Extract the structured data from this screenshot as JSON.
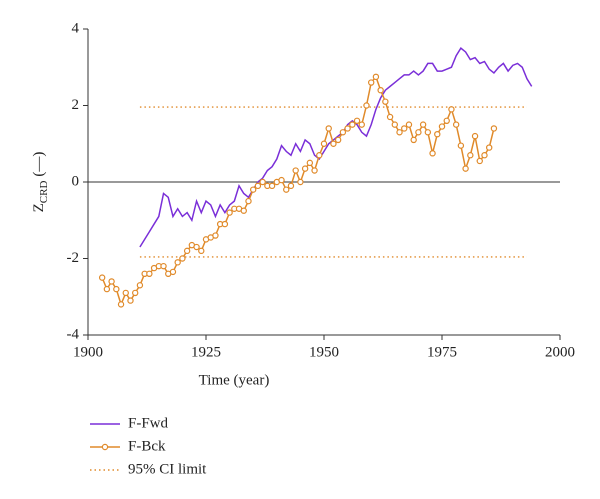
{
  "chart_data": {
    "type": "line",
    "xlabel": "Time (year)",
    "ylabel": "Z",
    "ylabel_sub": "CRD",
    "ylabel_unit": "(—)",
    "xlim": [
      1900,
      2000
    ],
    "xticks": [
      1900,
      1925,
      1950,
      1975,
      2000
    ],
    "ylim": [
      -4,
      4
    ],
    "yticks": [
      -4,
      -2,
      0,
      2,
      4
    ],
    "legend": "bottom-left",
    "series": [
      {
        "name": "F-Fwd",
        "color": "#7a2fd8",
        "markers": false,
        "x": [
          1911,
          1912,
          1913,
          1914,
          1915,
          1916,
          1917,
          1918,
          1919,
          1920,
          1921,
          1922,
          1923,
          1924,
          1925,
          1926,
          1927,
          1928,
          1929,
          1930,
          1931,
          1932,
          1933,
          1934,
          1935,
          1936,
          1937,
          1938,
          1939,
          1940,
          1941,
          1942,
          1943,
          1944,
          1945,
          1946,
          1947,
          1948,
          1949,
          1950,
          1951,
          1952,
          1953,
          1954,
          1955,
          1956,
          1957,
          1958,
          1959,
          1960,
          1961,
          1962,
          1963,
          1964,
          1965,
          1966,
          1967,
          1968,
          1969,
          1970,
          1971,
          1972,
          1973,
          1974,
          1975,
          1976,
          1977,
          1978,
          1979,
          1980,
          1981,
          1982,
          1983,
          1984,
          1985,
          1986,
          1987,
          1988,
          1989,
          1990,
          1991,
          1992,
          1993,
          1994
        ],
        "values": [
          -1.7,
          -1.5,
          -1.3,
          -1.1,
          -0.9,
          -0.3,
          -0.4,
          -0.9,
          -0.7,
          -0.9,
          -0.8,
          -1.0,
          -0.5,
          -0.8,
          -0.5,
          -0.6,
          -0.9,
          -0.6,
          -0.8,
          -0.6,
          -0.5,
          -0.1,
          -0.3,
          -0.4,
          -0.2,
          0.0,
          0.1,
          0.3,
          0.4,
          0.6,
          0.95,
          0.8,
          0.7,
          1.0,
          0.8,
          1.1,
          1.0,
          0.7,
          0.6,
          0.8,
          1.0,
          1.1,
          1.2,
          1.3,
          1.5,
          1.6,
          1.5,
          1.3,
          1.2,
          1.5,
          1.9,
          2.2,
          2.4,
          2.5,
          2.6,
          2.7,
          2.8,
          2.8,
          2.9,
          2.8,
          2.9,
          3.1,
          3.1,
          2.9,
          2.9,
          2.95,
          3.0,
          3.3,
          3.5,
          3.4,
          3.2,
          3.25,
          3.1,
          3.15,
          2.95,
          2.85,
          3.0,
          3.1,
          2.9,
          3.05,
          3.1,
          3.0,
          2.7,
          2.5
        ]
      },
      {
        "name": "F-Bck",
        "color": "#e08a2a",
        "markers": true,
        "x": [
          1903,
          1904,
          1905,
          1906,
          1907,
          1908,
          1909,
          1910,
          1911,
          1912,
          1913,
          1914,
          1915,
          1916,
          1917,
          1918,
          1919,
          1920,
          1921,
          1922,
          1923,
          1924,
          1925,
          1926,
          1927,
          1928,
          1929,
          1930,
          1931,
          1932,
          1933,
          1934,
          1935,
          1936,
          1937,
          1938,
          1939,
          1940,
          1941,
          1942,
          1943,
          1944,
          1945,
          1946,
          1947,
          1948,
          1949,
          1950,
          1951,
          1952,
          1953,
          1954,
          1955,
          1956,
          1957,
          1958,
          1959,
          1960,
          1961,
          1962,
          1963,
          1964,
          1965,
          1966,
          1967,
          1968,
          1969,
          1970,
          1971,
          1972,
          1973,
          1974,
          1975,
          1976,
          1977,
          1978,
          1979,
          1980,
          1981,
          1982,
          1983,
          1984,
          1985,
          1986
        ],
        "values": [
          -2.5,
          -2.8,
          -2.6,
          -2.8,
          -3.2,
          -2.9,
          -3.1,
          -2.9,
          -2.7,
          -2.4,
          -2.4,
          -2.25,
          -2.2,
          -2.2,
          -2.4,
          -2.35,
          -2.1,
          -2.0,
          -1.8,
          -1.65,
          -1.7,
          -1.8,
          -1.5,
          -1.45,
          -1.4,
          -1.1,
          -1.1,
          -0.8,
          -0.7,
          -0.7,
          -0.75,
          -0.5,
          -0.2,
          -0.1,
          0.0,
          -0.1,
          -0.1,
          0.0,
          0.05,
          -0.2,
          -0.1,
          0.3,
          0.0,
          0.35,
          0.5,
          0.3,
          0.7,
          1.0,
          1.4,
          1.0,
          1.1,
          1.3,
          1.4,
          1.5,
          1.6,
          1.5,
          2.0,
          2.6,
          2.75,
          2.4,
          2.1,
          1.7,
          1.5,
          1.3,
          1.4,
          1.5,
          1.1,
          1.3,
          1.5,
          1.3,
          0.75,
          1.25,
          1.45,
          1.6,
          1.9,
          1.5,
          0.95,
          0.35,
          0.7,
          1.2,
          0.55,
          0.7,
          0.9,
          1.4
        ]
      }
    ],
    "ci_limit": {
      "name": "95% CI limit",
      "color": "#e08a2a",
      "x": [
        1911,
        1993
      ],
      "values": [
        1.96,
        -1.96
      ]
    }
  }
}
